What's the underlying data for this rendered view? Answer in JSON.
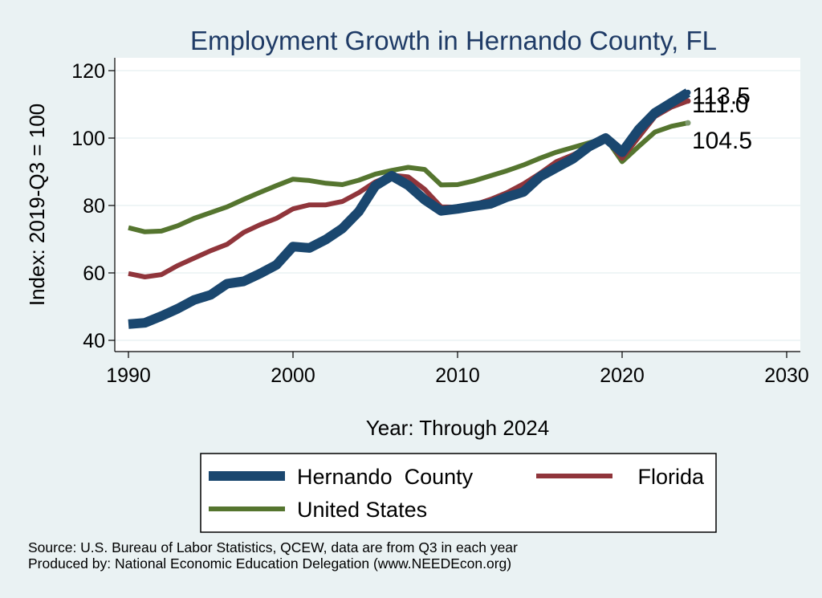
{
  "chart_data": {
    "type": "line",
    "title": "Employment Growth in Hernando County, FL",
    "xlabel": "Year: Through 2024",
    "ylabel": "Index: 2019-Q3 = 100",
    "xlim": [
      1990,
      2030
    ],
    "ylim": [
      40,
      120
    ],
    "xticks": [
      1990,
      2000,
      2010,
      2020,
      2030
    ],
    "yticks": [
      40,
      60,
      80,
      100,
      120
    ],
    "grid": true,
    "legend_position": "bottom",
    "x": [
      1990,
      1991,
      1992,
      1993,
      1994,
      1995,
      1996,
      1997,
      1998,
      1999,
      2000,
      2001,
      2002,
      2003,
      2004,
      2005,
      2006,
      2007,
      2008,
      2009,
      2010,
      2011,
      2012,
      2013,
      2014,
      2015,
      2016,
      2017,
      2018,
      2019,
      2020,
      2021,
      2022,
      2023,
      2024
    ],
    "series": [
      {
        "name": "Hernando  County",
        "color": "#1a476f",
        "values": [
          44.8,
          45.2,
          47.2,
          49.4,
          52.0,
          53.5,
          56.8,
          57.5,
          59.8,
          62.4,
          67.8,
          67.4,
          69.9,
          73.2,
          78.2,
          85.8,
          88.8,
          86.0,
          81.7,
          78.4,
          79.0,
          79.8,
          80.5,
          82.5,
          84.0,
          88.5,
          91.2,
          93.8,
          97.5,
          100.0,
          95.8,
          102.5,
          107.5,
          110.5,
          113.5
        ],
        "end_label": "113.5"
      },
      {
        "name": "Florida",
        "color": "#90353b",
        "values": [
          59.8,
          58.8,
          59.5,
          62.2,
          64.4,
          66.6,
          68.5,
          72.0,
          74.3,
          76.2,
          79.0,
          80.2,
          80.2,
          81.2,
          83.8,
          87.0,
          89.0,
          88.5,
          84.8,
          79.6,
          79.5,
          80.2,
          81.8,
          83.8,
          86.4,
          89.5,
          93.0,
          95.0,
          97.5,
          100.0,
          94.0,
          100.2,
          106.4,
          109.2,
          111.0
        ],
        "end_label": "111.0"
      },
      {
        "name": "United States",
        "color": "#55752f",
        "values": [
          73.4,
          72.2,
          72.4,
          74.0,
          76.2,
          77.9,
          79.6,
          81.8,
          83.9,
          85.9,
          87.8,
          87.4,
          86.6,
          86.2,
          87.5,
          89.3,
          90.4,
          91.3,
          90.7,
          86.1,
          86.2,
          87.3,
          88.8,
          90.3,
          92.0,
          94.0,
          95.8,
          97.2,
          98.6,
          100.0,
          93.0,
          97.5,
          101.8,
          103.5,
          104.5
        ],
        "end_label": "104.5"
      }
    ]
  },
  "source_lines": [
    "Source: U.S. Bureau of Labor Statistics, QCEW, data are from Q3 in each year",
    "Produced by: National Economic Education Delegation (www.NEEDEcon.org)"
  ]
}
